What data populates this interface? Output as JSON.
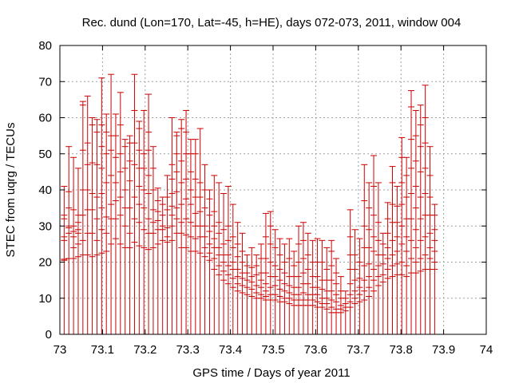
{
  "chart_data": {
    "type": "errorbar",
    "title": "Rec. dund (Lon=170, Lat=-45, h=HE), days 072-073, 2011, window 004",
    "xlabel": "GPS time / Days of year 2011",
    "ylabel": "STEC from uqrg / TECUs",
    "xlim": [
      73,
      74
    ],
    "ylim": [
      0,
      80
    ],
    "xticks": [
      "73",
      "73.1",
      "73.2",
      "73.3",
      "73.4",
      "73.5",
      "73.6",
      "73.7",
      "73.8",
      "73.9",
      "74"
    ],
    "yticks": [
      "0",
      "10",
      "20",
      "30",
      "40",
      "50",
      "60",
      "70",
      "80"
    ],
    "grid": true,
    "color": "#cc0000",
    "groups": [
      {
        "x": 73.01,
        "upper": 41,
        "points": [
          20.5,
          20.8,
          26,
          27,
          32,
          33
        ]
      },
      {
        "x": 73.021,
        "upper": 52,
        "points": [
          21,
          28,
          29.5,
          30,
          35,
          39.5
        ]
      },
      {
        "x": 73.032,
        "upper": 49,
        "points": [
          21,
          24,
          27,
          28.5,
          30,
          34.5
        ]
      },
      {
        "x": 73.043,
        "upper": 46,
        "points": [
          21.5,
          25,
          28,
          29,
          31,
          33
        ]
      },
      {
        "x": 73.054,
        "upper": 64.5,
        "points": [
          22,
          26,
          33,
          40,
          51,
          63.5
        ]
      },
      {
        "x": 73.065,
        "upper": 66,
        "points": [
          22,
          28,
          34.5,
          40,
          47,
          53
        ]
      },
      {
        "x": 73.076,
        "upper": 60,
        "points": [
          21.5,
          28,
          34.5,
          39,
          47.5,
          58
        ]
      },
      {
        "x": 73.087,
        "upper": 59.5,
        "points": [
          22,
          26,
          32,
          38,
          47,
          56
        ]
      },
      {
        "x": 73.098,
        "upper": 71,
        "points": [
          22.5,
          29,
          35,
          39,
          46,
          52,
          58
        ]
      },
      {
        "x": 73.109,
        "upper": 61,
        "points": [
          23,
          28,
          32.5,
          42,
          50,
          56
        ]
      },
      {
        "x": 73.12,
        "upper": 72,
        "points": [
          25,
          32,
          36,
          44,
          51,
          55
        ]
      },
      {
        "x": 73.131,
        "upper": 61,
        "points": [
          26.5,
          32,
          37,
          42,
          49,
          55
        ]
      },
      {
        "x": 73.142,
        "upper": 67,
        "points": [
          25,
          33,
          38,
          45,
          50,
          58
        ]
      },
      {
        "x": 73.153,
        "upper": 54,
        "points": [
          24,
          30,
          35,
          40,
          46,
          52
        ]
      },
      {
        "x": 73.164,
        "upper": 55,
        "points": [
          24,
          28,
          35,
          42.5,
          48,
          53
        ]
      },
      {
        "x": 73.175,
        "upper": 72,
        "points": [
          25.5,
          32,
          38,
          47,
          53,
          62
        ]
      },
      {
        "x": 73.186,
        "upper": 59,
        "points": [
          24.5,
          31,
          36,
          41,
          46,
          51,
          57
        ]
      },
      {
        "x": 73.197,
        "upper": 62,
        "points": [
          24,
          29,
          35,
          40,
          46,
          50
        ]
      },
      {
        "x": 73.208,
        "upper": 66.5,
        "points": [
          23.5,
          28,
          32,
          39,
          44,
          51,
          56
        ]
      },
      {
        "x": 73.219,
        "upper": 52,
        "points": [
          24,
          28,
          31,
          34.5,
          40,
          46
        ]
      },
      {
        "x": 73.23,
        "upper": 40.5,
        "points": [
          25,
          29,
          31.5,
          34,
          37
        ]
      },
      {
        "x": 73.241,
        "upper": 38,
        "points": [
          26,
          29,
          30,
          33,
          36
        ]
      },
      {
        "x": 73.252,
        "upper": 44,
        "points": [
          25.5,
          27,
          29.5,
          34.5,
          38
        ]
      },
      {
        "x": 73.263,
        "upper": 60,
        "points": [
          26,
          30,
          33,
          35.5,
          39,
          43,
          47
        ]
      },
      {
        "x": 73.274,
        "upper": 56,
        "points": [
          28,
          32,
          35,
          39.5,
          45,
          50,
          55
        ]
      },
      {
        "x": 73.285,
        "upper": 59.5,
        "points": [
          24,
          28,
          31,
          36,
          42,
          48,
          57
        ]
      },
      {
        "x": 73.296,
        "upper": 62,
        "points": [
          24,
          27.5,
          32,
          37.5,
          43,
          50,
          56
        ]
      },
      {
        "x": 73.307,
        "upper": 54,
        "points": [
          23,
          27,
          31,
          36,
          40,
          45,
          50
        ]
      },
      {
        "x": 73.318,
        "upper": 54,
        "points": [
          23,
          26.5,
          30,
          33.5,
          38,
          43,
          50
        ]
      },
      {
        "x": 73.329,
        "upper": 57,
        "points": [
          22.5,
          27,
          30,
          34,
          38,
          42
        ]
      },
      {
        "x": 73.34,
        "upper": 47,
        "points": [
          21.5,
          24,
          27,
          30,
          35,
          40
        ]
      },
      {
        "x": 73.351,
        "upper": 40,
        "points": [
          20.5,
          22.5,
          25,
          28.5,
          33,
          37.5
        ]
      },
      {
        "x": 73.362,
        "upper": 44,
        "points": [
          18,
          21,
          24,
          26.5,
          30,
          34
        ]
      },
      {
        "x": 73.373,
        "upper": 42,
        "points": [
          16.5,
          19,
          22,
          24,
          28,
          31
        ]
      },
      {
        "x": 73.384,
        "upper": 39,
        "points": [
          15,
          17.5,
          20,
          22,
          25,
          29
        ]
      },
      {
        "x": 73.395,
        "upper": 41,
        "points": [
          14,
          16.5,
          19,
          22,
          26,
          30
        ]
      },
      {
        "x": 73.406,
        "upper": 36,
        "points": [
          13,
          15.5,
          18,
          20,
          24,
          27
        ]
      },
      {
        "x": 73.417,
        "upper": 31,
        "points": [
          12,
          14,
          16,
          18,
          21.5,
          25
        ]
      },
      {
        "x": 73.428,
        "upper": 28,
        "points": [
          11.5,
          13.5,
          15.5,
          17,
          20,
          23
        ]
      },
      {
        "x": 73.439,
        "upper": 22,
        "points": [
          11,
          13,
          15,
          17,
          19
        ]
      },
      {
        "x": 73.45,
        "upper": 24,
        "points": [
          10.5,
          12.5,
          14.5,
          16,
          18.5
        ]
      },
      {
        "x": 73.461,
        "upper": 22,
        "points": [
          10,
          11.5,
          13.5,
          16.5,
          19
        ]
      },
      {
        "x": 73.472,
        "upper": 25,
        "points": [
          10,
          11,
          13,
          15,
          17,
          21
        ]
      },
      {
        "x": 73.483,
        "upper": 33.5,
        "points": [
          9.5,
          10.5,
          12,
          14,
          17,
          21,
          27
        ]
      },
      {
        "x": 73.494,
        "upper": 34,
        "points": [
          9.5,
          11,
          13,
          16,
          20,
          25,
          30
        ]
      },
      {
        "x": 73.505,
        "upper": 29,
        "points": [
          9.5,
          11,
          13.5,
          16,
          19,
          24
        ]
      },
      {
        "x": 73.516,
        "upper": 26.5,
        "points": [
          9,
          10.5,
          12.5,
          15,
          18,
          22
        ]
      },
      {
        "x": 73.527,
        "upper": 25,
        "points": [
          9,
          10,
          12,
          14,
          17,
          20
        ]
      },
      {
        "x": 73.538,
        "upper": 26.5,
        "points": [
          8.5,
          10,
          11.5,
          13.5,
          16,
          21
        ]
      },
      {
        "x": 73.549,
        "upper": 23,
        "points": [
          8,
          9.5,
          11,
          13,
          16,
          19
        ]
      },
      {
        "x": 73.56,
        "upper": 30,
        "points": [
          8,
          9.5,
          11,
          13,
          16,
          20,
          25
        ]
      },
      {
        "x": 73.571,
        "upper": 31,
        "points": [
          8,
          9.5,
          11.5,
          14,
          17,
          21,
          26
        ]
      },
      {
        "x": 73.582,
        "upper": 28,
        "points": [
          8,
          9.5,
          11,
          14,
          18,
          22
        ]
      },
      {
        "x": 73.593,
        "upper": 26,
        "points": [
          8,
          9.5,
          11,
          13,
          16,
          20
        ]
      },
      {
        "x": 73.604,
        "upper": 26.5,
        "points": [
          7.5,
          9,
          11,
          13,
          16,
          20
        ]
      },
      {
        "x": 73.615,
        "upper": 26,
        "points": [
          7.5,
          8.5,
          10,
          12.5,
          15,
          20
        ]
      },
      {
        "x": 73.626,
        "upper": 24,
        "points": [
          7,
          8.5,
          10,
          12,
          15,
          18
        ]
      },
      {
        "x": 73.637,
        "upper": 26,
        "points": [
          6,
          7.5,
          9.5,
          12,
          15,
          19,
          23
        ]
      },
      {
        "x": 73.648,
        "upper": 21,
        "points": [
          6,
          7,
          9,
          11,
          14,
          17
        ]
      },
      {
        "x": 73.659,
        "upper": 16,
        "points": [
          6,
          7,
          8,
          10,
          12
        ]
      },
      {
        "x": 73.67,
        "upper": 12,
        "points": [
          6.5,
          7.5,
          8.5,
          10
        ]
      },
      {
        "x": 73.681,
        "upper": 34.5,
        "points": [
          7.5,
          9,
          11,
          14,
          18,
          22,
          27
        ]
      },
      {
        "x": 73.692,
        "upper": 29,
        "points": [
          8.5,
          10,
          12,
          15,
          18,
          22
        ]
      },
      {
        "x": 73.703,
        "upper": 26.5,
        "points": [
          9,
          11,
          13,
          15.5,
          20
        ]
      },
      {
        "x": 73.714,
        "upper": 47,
        "points": [
          9.5,
          12,
          15,
          19,
          24,
          30,
          37
        ]
      },
      {
        "x": 73.725,
        "upper": 42,
        "points": [
          10.5,
          13,
          16,
          19.5,
          24,
          29,
          35
        ]
      },
      {
        "x": 73.736,
        "upper": 49.5,
        "points": [
          12,
          15,
          18,
          23,
          27,
          33,
          41
        ]
      },
      {
        "x": 73.747,
        "upper": 42,
        "points": [
          13.5,
          16,
          19,
          22,
          26,
          31
        ]
      },
      {
        "x": 73.758,
        "upper": 28,
        "points": [
          14.5,
          16.5,
          19.5,
          22,
          25
        ]
      },
      {
        "x": 73.769,
        "upper": 36.5,
        "points": [
          15.5,
          18,
          21,
          24,
          28,
          32
        ]
      },
      {
        "x": 73.78,
        "upper": 46.5,
        "points": [
          16,
          19,
          22,
          26,
          31,
          36,
          42
        ]
      },
      {
        "x": 73.791,
        "upper": 41,
        "points": [
          16.5,
          19.5,
          23,
          27,
          31,
          35.5
        ]
      },
      {
        "x": 73.802,
        "upper": 54.5,
        "points": [
          16.5,
          20,
          25,
          30,
          36,
          42,
          49
        ]
      },
      {
        "x": 73.813,
        "upper": 49,
        "points": [
          16,
          19,
          23,
          27,
          32,
          38,
          44
        ]
      },
      {
        "x": 73.824,
        "upper": 67.5,
        "points": [
          17,
          21,
          26,
          32,
          39,
          46,
          54,
          63
        ]
      },
      {
        "x": 73.835,
        "upper": 62,
        "points": [
          17,
          20,
          24,
          29,
          35,
          41,
          48,
          55
        ]
      },
      {
        "x": 73.846,
        "upper": 63.5,
        "points": [
          17.5,
          21,
          26,
          32,
          38,
          45,
          52,
          58
        ]
      },
      {
        "x": 73.857,
        "upper": 69,
        "points": [
          18,
          22,
          27,
          33,
          39,
          46,
          53,
          60
        ]
      },
      {
        "x": 73.868,
        "upper": 52,
        "points": [
          18,
          21,
          24,
          28,
          33,
          38,
          44
        ]
      },
      {
        "x": 73.879,
        "upper": 36,
        "points": [
          18,
          20,
          23,
          26,
          29,
          33
        ]
      }
    ]
  }
}
